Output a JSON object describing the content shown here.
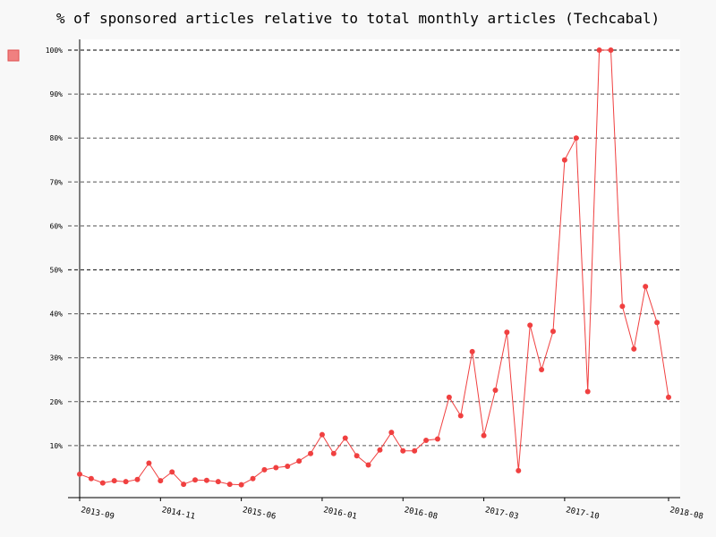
{
  "chart_data": {
    "type": "line",
    "title": "% of sponsored articles relative to total monthly articles (Techcabal)",
    "xlabel": "",
    "ylabel": "",
    "ylim": [
      0,
      100
    ],
    "yticks": [
      10,
      20,
      30,
      40,
      50,
      60,
      70,
      80,
      90,
      100
    ],
    "ytick_labels": [
      "10%",
      "20%",
      "30%",
      "40%",
      "50%",
      "60%",
      "70%",
      "80%",
      "90%",
      "100%"
    ],
    "major_gridlines": [
      50,
      100
    ],
    "xtick_labels": [
      "2013-09",
      "2014-11",
      "2015-06",
      "2016-01",
      "2016-08",
      "2017-03",
      "2017-10",
      "2018-08"
    ],
    "xtick_positions": [
      0,
      7,
      14,
      21,
      28,
      35,
      42,
      51
    ],
    "legend": {
      "placement": "top-left",
      "color": "#f08080",
      "label": ""
    },
    "series_color": "#f04040",
    "series": [
      {
        "name": "",
        "values": [
          3.5,
          2.5,
          1.5,
          2,
          1.8,
          2.3,
          6,
          2,
          4,
          1.2,
          2.2,
          2.1,
          1.8,
          1.2,
          1.1,
          2.5,
          4.5,
          5,
          5.3,
          6.5,
          8.2,
          12.5,
          8.2,
          11.7,
          7.7,
          5.6,
          9,
          13,
          8.8,
          8.8,
          11.2,
          11.5,
          21,
          16.8,
          31.4,
          12.3,
          22.6,
          35.8,
          4.3,
          37.4,
          27.3,
          36,
          75,
          80,
          22.3,
          100,
          100,
          41.7,
          32,
          46.2,
          38,
          21
        ]
      }
    ]
  }
}
